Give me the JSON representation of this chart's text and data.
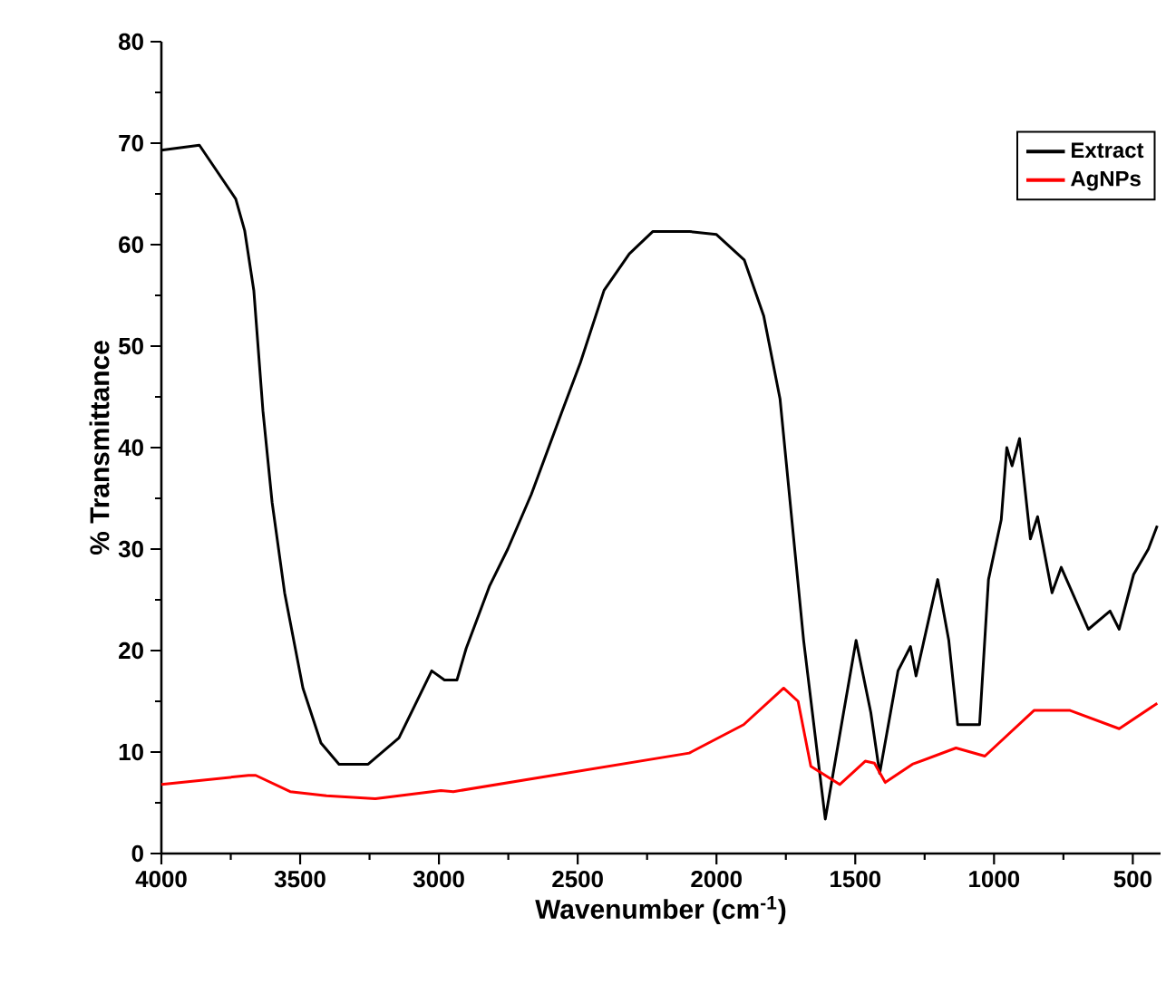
{
  "chart_data": {
    "type": "line",
    "xlabel": "Wavenumber (cm$^{-1}$)",
    "ylabel": "% Transmittance",
    "xlim": [
      4000,
      400
    ],
    "ylim": [
      0,
      80
    ],
    "xticks": [
      4000,
      3500,
      3000,
      2500,
      2000,
      1500,
      1000,
      500
    ],
    "yticks": [
      0,
      10,
      20,
      30,
      40,
      50,
      60,
      70,
      80
    ],
    "legend": "top right",
    "series": [
      {
        "name": "Extract",
        "color": "#000000",
        "x": [
          4000,
          3863,
          3732,
          3700,
          3667,
          3634,
          3601,
          3556,
          3490,
          3425,
          3360,
          3255,
          3144,
          3026,
          2980,
          2935,
          2902,
          2817,
          2752,
          2667,
          2556,
          2490,
          2405,
          2314,
          2229,
          2098,
          2000,
          1900,
          1830,
          1771,
          1686,
          1608,
          1542,
          1497,
          1444,
          1412,
          1346,
          1301,
          1281,
          1203,
          1163,
          1131,
          1052,
          1020,
          974,
          954,
          935,
          908,
          869,
          843,
          791,
          758,
          660,
          582,
          549,
          497,
          444,
          412
        ],
        "values": [
          69.3,
          69.8,
          64.5,
          61.4,
          55.5,
          43.6,
          34.6,
          25.7,
          16.3,
          10.9,
          8.8,
          8.8,
          11.4,
          18.0,
          17.1,
          17.1,
          20.2,
          26.4,
          30.0,
          35.4,
          43.6,
          48.4,
          55.5,
          59.1,
          61.3,
          61.3,
          61.0,
          58.5,
          53.0,
          44.8,
          21.0,
          3.4,
          13.9,
          21.0,
          13.9,
          7.9,
          18.0,
          20.4,
          17.5,
          27.0,
          21.0,
          12.7,
          12.7,
          27.0,
          32.9,
          40.0,
          38.2,
          40.9,
          31.0,
          33.2,
          25.7,
          28.2,
          22.1,
          23.9,
          22.1,
          27.5,
          30.0,
          32.3
        ]
      },
      {
        "name": "AgNPs",
        "color": "#ff0000",
        "x": [
          4000,
          3686,
          3660,
          3536,
          3405,
          3229,
          2993,
          2948,
          2098,
          1902,
          1758,
          1706,
          1660,
          1556,
          1464,
          1431,
          1392,
          1294,
          1137,
          1033,
          856,
          726,
          549,
          412
        ],
        "values": [
          6.8,
          7.7,
          7.7,
          6.1,
          5.7,
          5.4,
          6.2,
          6.1,
          9.9,
          12.7,
          16.3,
          15.0,
          8.6,
          6.8,
          9.1,
          8.9,
          7.0,
          8.8,
          10.4,
          9.6,
          14.1,
          14.1,
          12.3,
          14.8
        ]
      }
    ]
  }
}
